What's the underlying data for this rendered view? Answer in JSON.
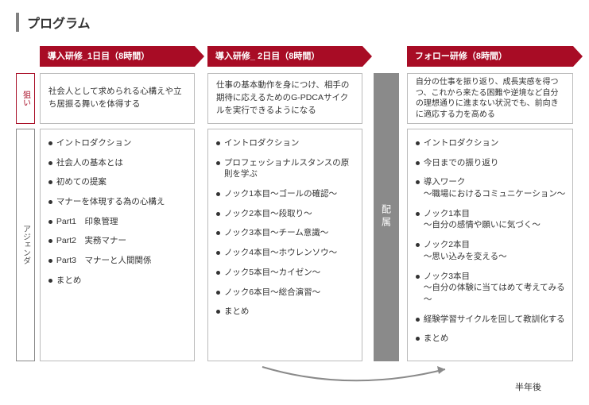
{
  "page_title": "プログラム",
  "labels": {
    "aim": "狙い",
    "agenda": "アジェンダ"
  },
  "colors": {
    "brand": "#a80c25",
    "border": "#bbbbbb",
    "vbar": "#8a8a8a",
    "title_border": "#808080"
  },
  "columns": [
    {
      "header": "導入研修_1日目（8時間）",
      "aim": "社会人として求められる心構えや立ち居振る舞いを体得する",
      "agenda": [
        "イントロダクション",
        "社会人の基本とは",
        "初めての提案",
        "マナーを体現する為の心構え",
        "Part1　印象管理",
        "Part2　実務マナー",
        "Part3　マナーと人間関係",
        "まとめ"
      ]
    },
    {
      "header": "導入研修_ 2日目（8時間）",
      "aim": "仕事の基本動作を身につけ、相手の期待に応えるためのG-PDCAサイクルを実行できるようになる",
      "agenda": [
        "イントロダクション",
        "プロフェッショナルスタンスの原則を学ぶ",
        "ノック1本目～ゴールの確認～",
        "ノック2本目～段取り～",
        "ノック3本目～チーム意識～",
        "ノック4本目～ホウレンソウ～",
        "ノック5本目～カイゼン～",
        "ノック6本目～総合演習～",
        "まとめ"
      ]
    },
    {
      "header": "フォロー研修（8時間）",
      "aim": "自分の仕事を振り返り、成長実感を得つつ、これから来たる困難や逆境など自分の理想通りに進まない状況でも、前向きに適応する力を高める",
      "agenda": [
        "イントロダクション",
        "今日までの振り返り",
        "導入ワーク\n～職場におけるコミュニケーション～",
        "ノック1本目\n～自分の感情や願いに気づく～",
        "ノック2本目\n～思い込みを変える～",
        "ノック3本目\n～自分の体験に当てはめて考えてみる～",
        "経験学習サイクルを回して教訓化する",
        "まとめ"
      ]
    }
  ],
  "vbar_label": "配属",
  "footer_label": "半年後",
  "arrow": {
    "stroke": "#8a8a8a",
    "width": 2
  }
}
